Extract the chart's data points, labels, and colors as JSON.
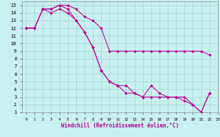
{
  "xlabel": "Windchill (Refroidissement éolien,°C)",
  "bg_color": "#c8f0f0",
  "line_color": "#bb0099",
  "grid_color": "#a0d0d0",
  "xlim": [
    -0.5,
    23
  ],
  "ylim": [
    1,
    15.5
  ],
  "xticks": [
    0,
    1,
    2,
    3,
    4,
    5,
    6,
    7,
    8,
    9,
    10,
    11,
    12,
    13,
    14,
    15,
    16,
    17,
    18,
    19,
    20,
    21,
    22,
    23
  ],
  "yticks": [
    1,
    2,
    3,
    4,
    5,
    6,
    7,
    8,
    9,
    10,
    11,
    12,
    13,
    14,
    15
  ],
  "series": [
    {
      "x": [
        0,
        1,
        2,
        3,
        4,
        5,
        6,
        7,
        8,
        9,
        10,
        11,
        12,
        13,
        14,
        15,
        16,
        17,
        18,
        19,
        20,
        21,
        22
      ],
      "y": [
        12,
        12,
        14.5,
        14.5,
        15,
        15,
        14.5,
        13.5,
        13,
        12,
        9,
        9,
        9,
        9,
        9,
        9,
        9,
        9,
        9,
        9,
        9,
        9,
        8.5
      ]
    },
    {
      "x": [
        0,
        1,
        2,
        3,
        4,
        5,
        6,
        7,
        8,
        9,
        10,
        11,
        12,
        13,
        14,
        15,
        16,
        17,
        18,
        19,
        20,
        21,
        22
      ],
      "y": [
        12,
        12,
        14.5,
        14.5,
        15,
        14.5,
        13,
        11.5,
        9.5,
        6.5,
        5,
        4.5,
        4.5,
        3.5,
        3,
        4.5,
        3.5,
        3,
        3,
        3,
        2,
        1,
        3.5
      ]
    },
    {
      "x": [
        0,
        1,
        2,
        3,
        4,
        5,
        6,
        7,
        8,
        9,
        10,
        11,
        12,
        13,
        14,
        15,
        16,
        17,
        18,
        19,
        20,
        21,
        22
      ],
      "y": [
        12,
        12,
        14.5,
        14,
        14.5,
        14,
        13,
        11.5,
        9.5,
        6.5,
        5,
        4.5,
        3.5,
        3.5,
        3,
        3,
        3,
        3,
        3,
        2.5,
        2,
        1,
        3.5
      ]
    }
  ]
}
